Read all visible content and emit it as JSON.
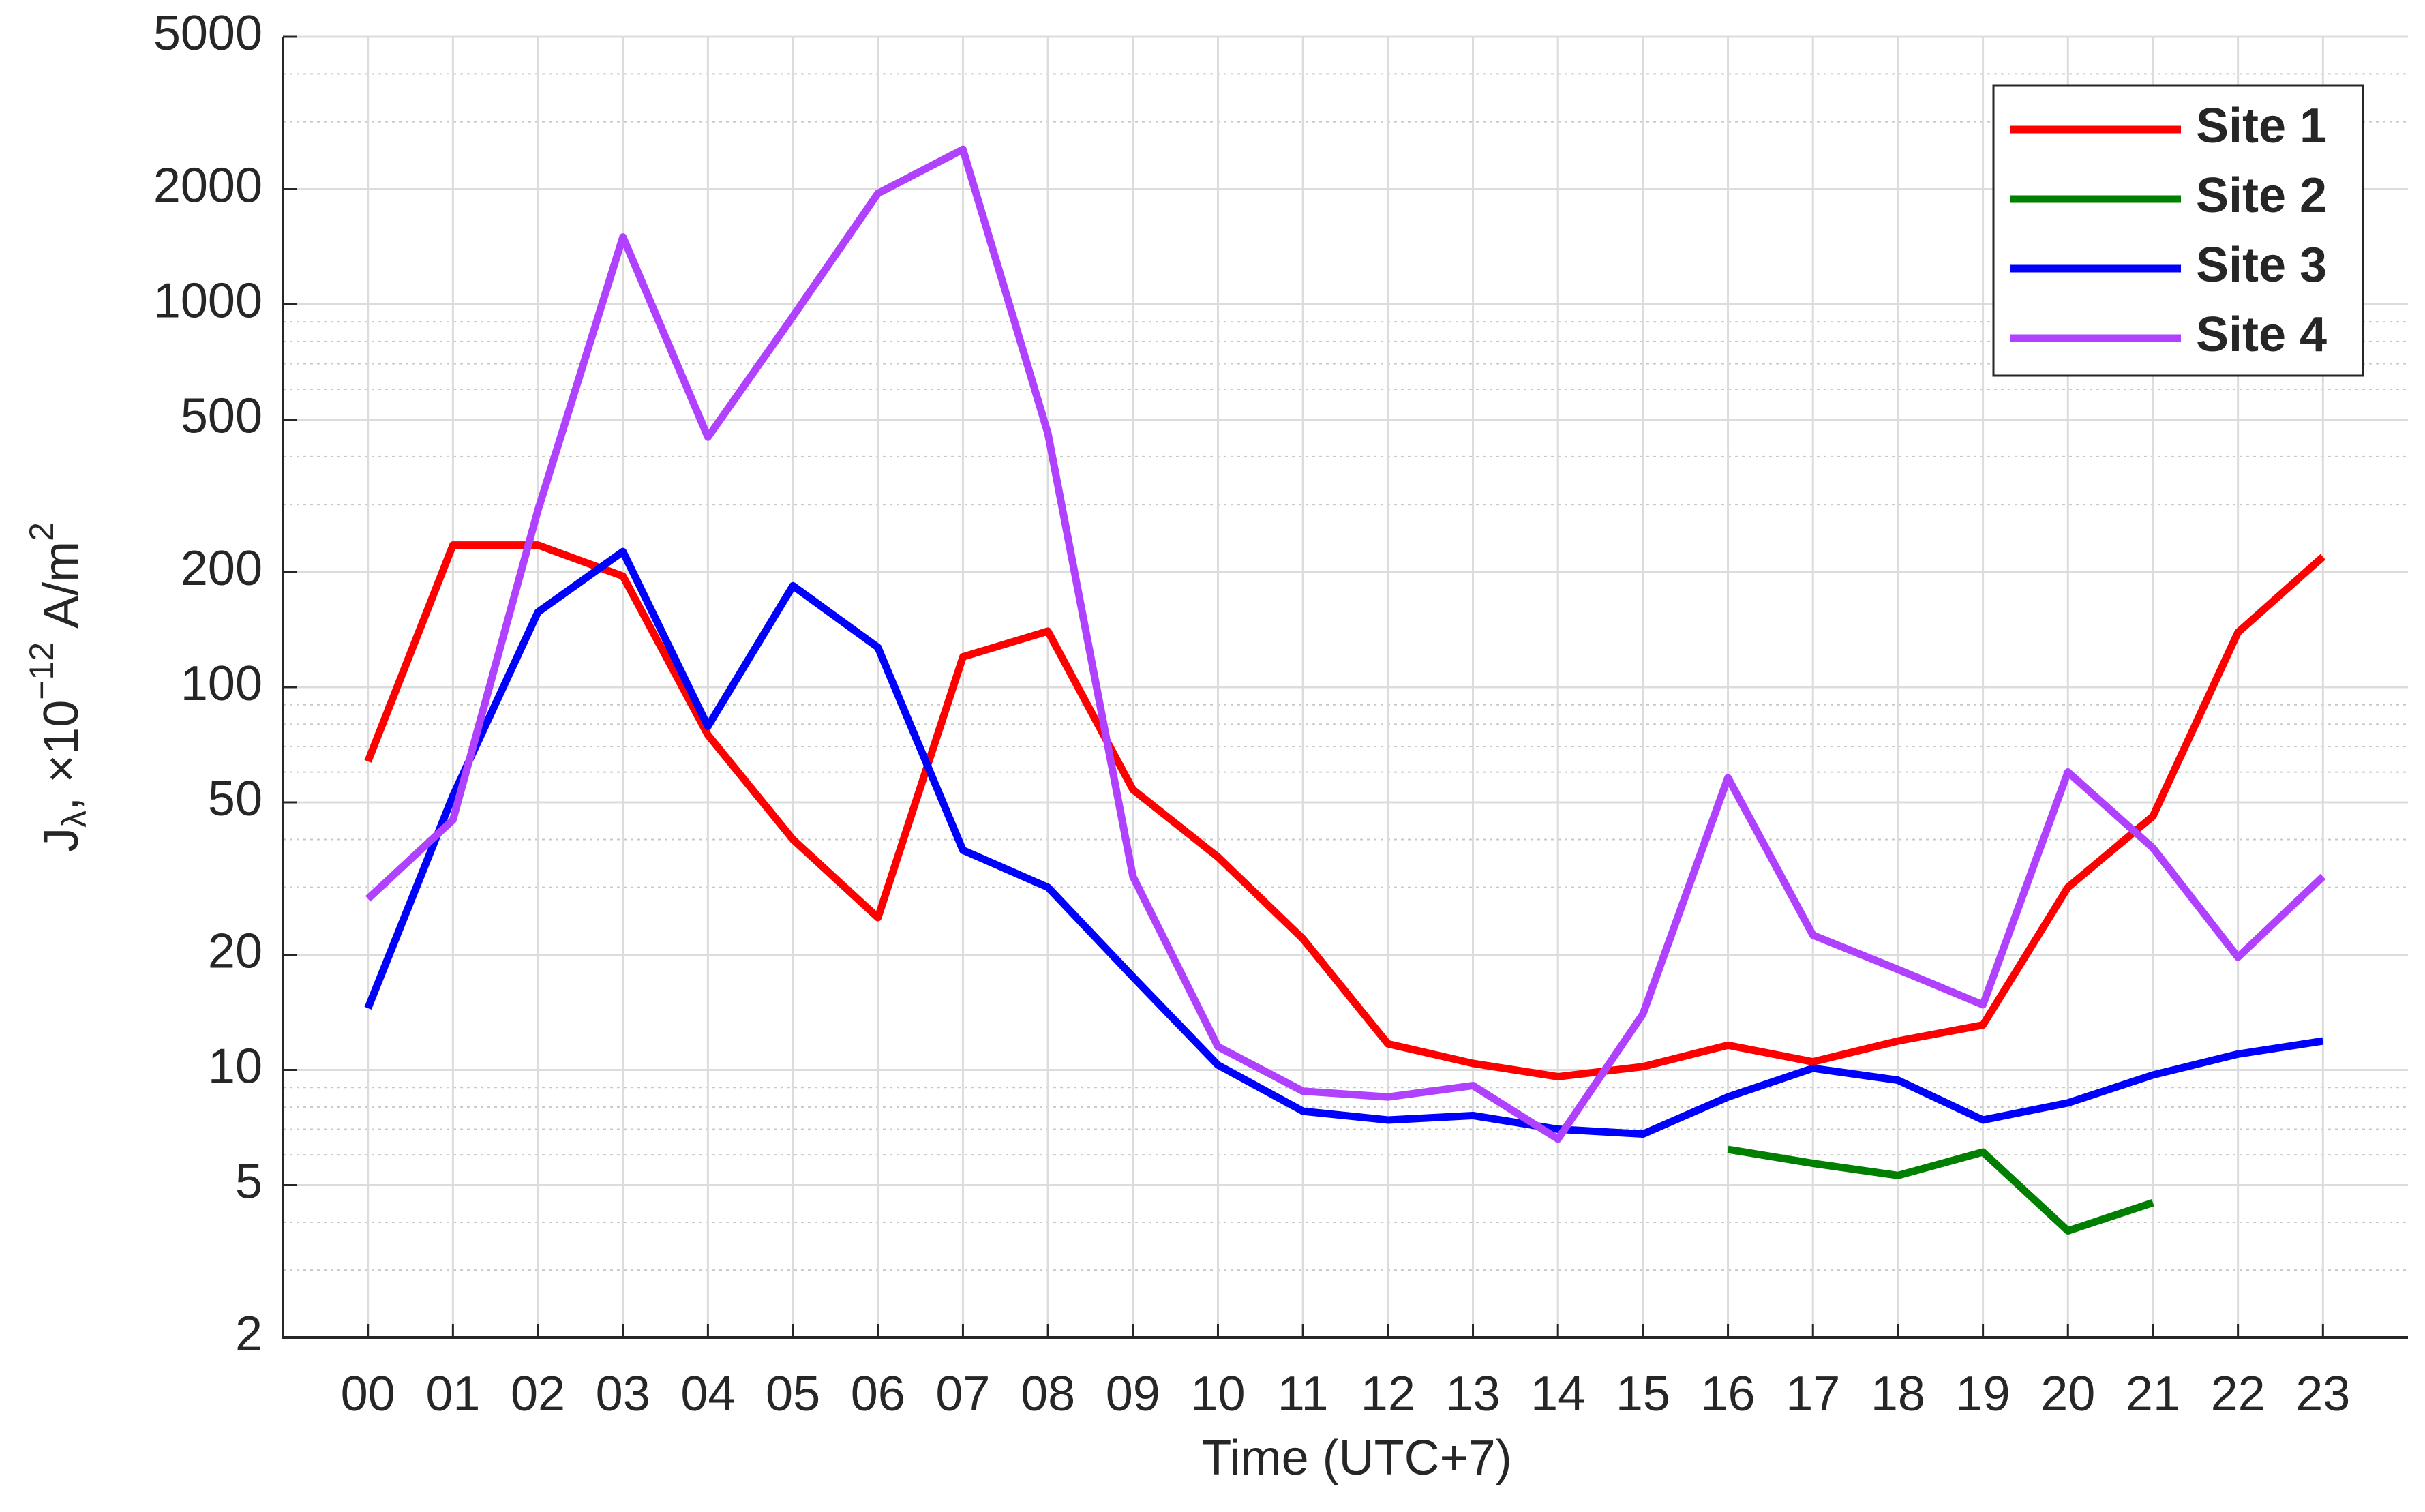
{
  "chart_data": {
    "type": "line",
    "x_label": "Time (UTC+7)",
    "y_label_parts": [
      "J",
      "λ",
      ", ×10",
      "−12",
      " A/m",
      "2"
    ],
    "categories": [
      "00",
      "01",
      "02",
      "03",
      "04",
      "05",
      "06",
      "07",
      "08",
      "09",
      "10",
      "11",
      "12",
      "13",
      "14",
      "15",
      "16",
      "17",
      "18",
      "19",
      "20",
      "21",
      "22",
      "23"
    ],
    "series": [
      {
        "name": "Site 1",
        "color": "#ff0000",
        "values": [
          64,
          235,
          235,
          195,
          75,
          40,
          25,
          120,
          140,
          54,
          36,
          22,
          11.7,
          10.4,
          9.6,
          10.2,
          11.6,
          10.5,
          11.9,
          13.1,
          30,
          46,
          139,
          219
        ]
      },
      {
        "name": "Site 2",
        "color": "#007f00",
        "values": [
          null,
          null,
          null,
          null,
          null,
          null,
          null,
          null,
          null,
          null,
          null,
          null,
          null,
          null,
          null,
          null,
          6.2,
          5.7,
          5.3,
          6.1,
          3.8,
          4.5,
          null,
          null
        ]
      },
      {
        "name": "Site 3",
        "color": "#0000ff",
        "values": [
          14.5,
          52,
          157,
          226,
          79,
          184,
          127,
          37.5,
          30,
          17.5,
          10.3,
          7.8,
          7.4,
          7.6,
          7.0,
          6.8,
          8.5,
          10.1,
          9.4,
          7.4,
          8.2,
          9.7,
          11,
          11.9
        ]
      },
      {
        "name": "Site 4",
        "color": "#b041ff",
        "values": [
          28,
          45,
          290,
          1500,
          450,
          930,
          1950,
          2540,
          460,
          32,
          11.5,
          8.8,
          8.5,
          9.1,
          6.6,
          14,
          58,
          22.5,
          18.3,
          14.8,
          60,
          38,
          19.7,
          32
        ]
      }
    ],
    "ylim": [
      2,
      5000
    ],
    "yticks": [
      2,
      5,
      10,
      20,
      50,
      100,
      200,
      500,
      1000,
      2000,
      5000
    ],
    "log_y": true,
    "grid": true,
    "minor_grid": true,
    "legend": "northeast"
  }
}
